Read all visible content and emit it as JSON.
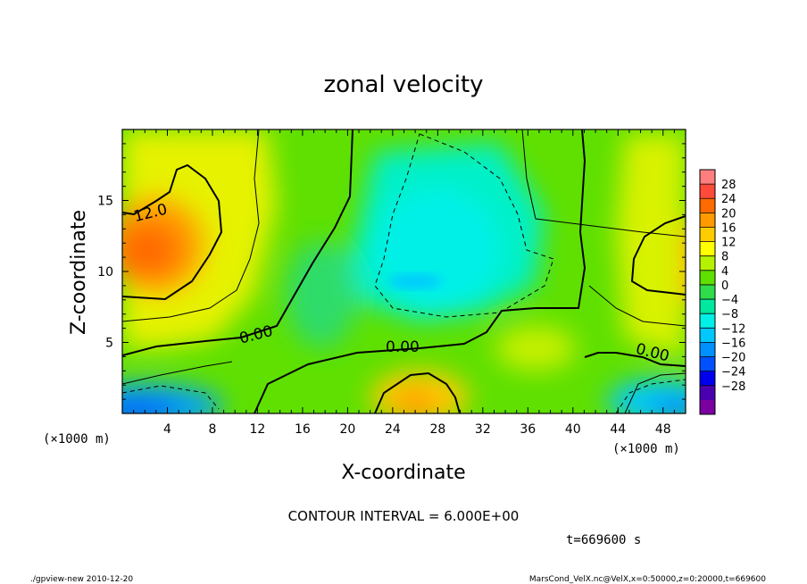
{
  "chart_data": {
    "type": "heatmap",
    "title": "zonal velocity",
    "xlabel": "X-coordinate",
    "ylabel": "Z-coordinate",
    "x_unit": "(×1000 m)",
    "z_unit": "(×1000 m)",
    "xlim": [
      0,
      50
    ],
    "ylim": [
      0,
      20
    ],
    "x_ticks": [
      4,
      8,
      12,
      16,
      20,
      24,
      28,
      32,
      36,
      40,
      44,
      48
    ],
    "y_ticks": [
      5,
      10,
      15
    ],
    "colorbar": {
      "labels": [
        "28",
        "24",
        "20",
        "16",
        "12",
        "8",
        "4",
        "0",
        "−4",
        "−8",
        "−12",
        "−16",
        "−20",
        "−24",
        "−28"
      ],
      "colors": [
        "#ff7f7f",
        "#ff4a3a",
        "#ff6a00",
        "#ff9a00",
        "#ffcc00",
        "#ffff00",
        "#b5f200",
        "#5fe000",
        "#2fdc4a",
        "#00e8a0",
        "#00f0e8",
        "#00c8ff",
        "#0090ff",
        "#0050ff",
        "#0000ee",
        "#4a00b0",
        "#7a00a0"
      ]
    },
    "contour_labels": [
      "12.0",
      "0.00",
      "0.00",
      "0.00"
    ],
    "contour_interval_text": "CONTOUR INTERVAL = 6.000E+00",
    "time_text": "t=669600 s"
  },
  "footer": {
    "left": "./gpview-new  2010-12-20",
    "right": "MarsCond_VelX.nc@VelX,x=0:50000,z=0:20000,t=669600"
  }
}
